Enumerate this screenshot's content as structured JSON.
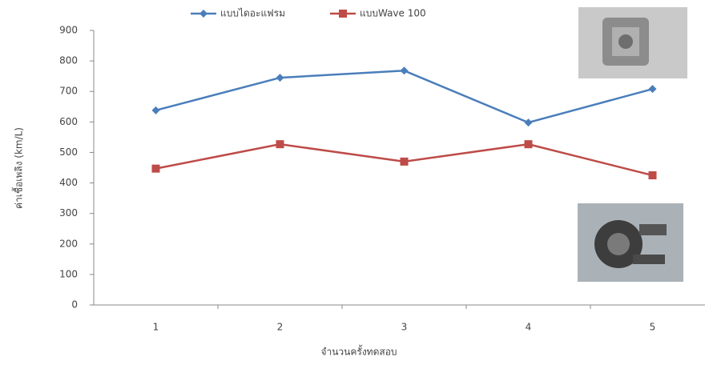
{
  "chart_data": {
    "type": "line",
    "x_label": "จำนวนครั้งทดสอบ",
    "y_label": "ค่าเชื้อเพลิง (km/L)",
    "categories": [
      "1",
      "2",
      "3",
      "4",
      "5"
    ],
    "series": [
      {
        "name": "แบบไดอะแฟรม",
        "color": "#4a7ebb",
        "marker": "diamond",
        "values": [
          638,
          745,
          768,
          598,
          708
        ]
      },
      {
        "name": "แบบWave 100",
        "color": "#be4b48",
        "marker": "square",
        "values": [
          447,
          527,
          470,
          527,
          425
        ]
      }
    ],
    "ylim": [
      0,
      900
    ],
    "yticks": [
      0,
      100,
      200,
      300,
      400,
      500,
      600,
      700,
      800,
      900
    ],
    "grid": false
  }
}
